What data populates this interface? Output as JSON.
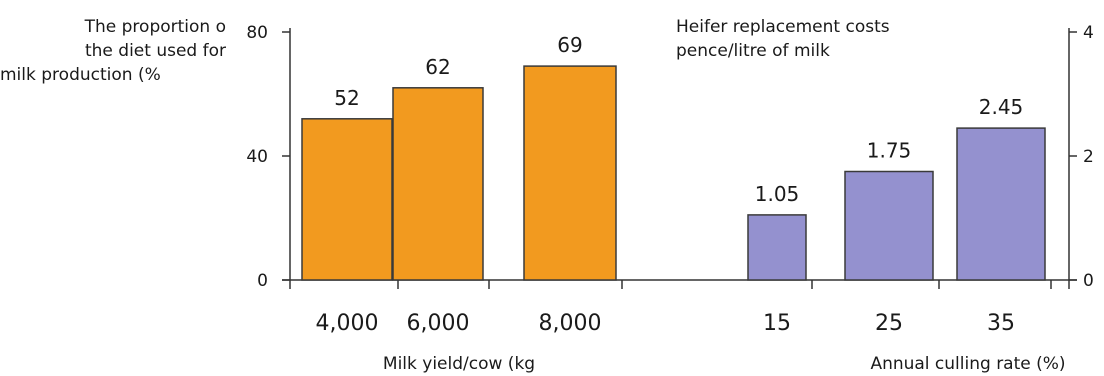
{
  "left_label_lines": [
    "The proportion o",
    "the diet used for",
    "milk production (%"
  ],
  "right_title_lines": [
    "Heifer replacement costs",
    "pence/litre of milk"
  ],
  "chart_data": [
    {
      "type": "bar",
      "categories": [
        "4,000",
        "6,000",
        "8,000"
      ],
      "values": [
        52,
        62,
        69
      ],
      "data_labels": [
        "52",
        "62",
        "69"
      ],
      "xlabel": "Milk yield/cow  (kg",
      "ylabel": "The proportion o the diet used for milk production (%",
      "ylim": [
        0,
        80
      ],
      "yticks": [
        "0",
        "40",
        "80"
      ],
      "bar_color": "#f29a1f",
      "axis_side": "left"
    },
    {
      "type": "bar",
      "categories": [
        "15",
        "25",
        "35"
      ],
      "values": [
        1.05,
        1.75,
        2.45
      ],
      "data_labels": [
        "1.05",
        "1.75",
        "2.45"
      ],
      "title": "Heifer replacement costs pence/litre of milk",
      "xlabel": "Annual culling rate (%)",
      "ylim": [
        0,
        4
      ],
      "yticks": [
        "0",
        "2",
        "4"
      ],
      "bar_color": "#9491cf",
      "axis_side": "right"
    }
  ]
}
